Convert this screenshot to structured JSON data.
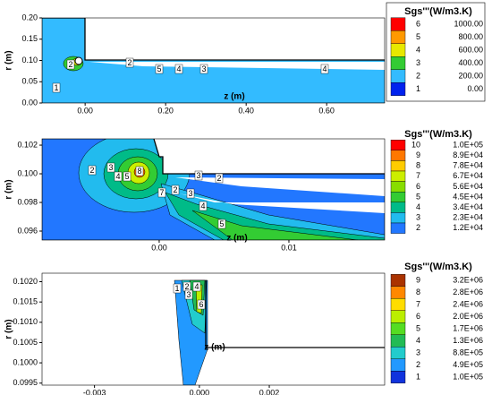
{
  "chart_data": [
    {
      "type": "contour",
      "ylabel": "r (m)",
      "xlabel": "z (m)",
      "xlim": [
        -0.107,
        0.744
      ],
      "ylim": [
        0,
        0.2
      ],
      "xticks": [
        {
          "value": 0,
          "label": "0.00"
        },
        {
          "value": 0.2,
          "label": "0.20"
        },
        {
          "value": 0.4,
          "label": "0.40"
        },
        {
          "value": 0.6,
          "label": "0.60"
        }
      ],
      "yticks": [
        {
          "value": 0,
          "label": "0.00"
        },
        {
          "value": 0.05,
          "label": "0.05"
        },
        {
          "value": 0.1,
          "label": "0.10"
        },
        {
          "value": 0.15,
          "label": "0.15"
        },
        {
          "value": 0.2,
          "label": "0.20"
        }
      ],
      "legend": {
        "title": "Sgs'''(W/m3.K)",
        "levels": [
          {
            "level": 6,
            "value": 1000,
            "label": "1000.00",
            "color": "#ff0000"
          },
          {
            "level": 5,
            "value": 800,
            "label": "800.00",
            "color": "#ff9900"
          },
          {
            "level": 4,
            "value": 600,
            "label": "600.00",
            "color": "#e8e800"
          },
          {
            "level": 3,
            "value": 400,
            "label": "400.00",
            "color": "#33cc33"
          },
          {
            "level": 2,
            "value": 200,
            "label": "200.00",
            "color": "#33bbff"
          },
          {
            "level": 1,
            "value": 0,
            "label": "0.00",
            "color": "#0022ee"
          }
        ]
      }
    },
    {
      "type": "contour",
      "ylabel": "r (m)",
      "xlabel": "z (m)",
      "xlim": [
        -0.00903,
        0.01738
      ],
      "ylim": [
        0.095375,
        0.10244
      ],
      "xticks": [
        {
          "value": 0,
          "label": "0.00"
        },
        0.01
      ],
      "yticks": [
        0.102,
        {
          "value": 0.1,
          "label": "0.100"
        },
        0.098,
        0.096
      ],
      "legend": {
        "title": "Sgs'''(W/m3.K)",
        "levels": [
          {
            "level": 10,
            "value": 100000,
            "label": "1.0E+05",
            "color": "#ff0000"
          },
          {
            "level": 9,
            "value": 89000,
            "label": "8.9E+04",
            "color": "#ff7700"
          },
          {
            "level": 8,
            "value": 78000,
            "label": "7.8E+04",
            "color": "#ffcc00"
          },
          {
            "level": 7,
            "value": 67000,
            "label": "6.7E+04",
            "color": "#ccee00"
          },
          {
            "level": 6,
            "value": 56000,
            "label": "5.6E+04",
            "color": "#88dd00"
          },
          {
            "level": 5,
            "value": 45000,
            "label": "4.5E+04",
            "color": "#33cc33"
          },
          {
            "level": 4,
            "value": 34000,
            "label": "3.4E+04",
            "color": "#00bb88"
          },
          {
            "level": 3,
            "value": 23000,
            "label": "2.3E+04",
            "color": "#22bbee"
          },
          {
            "level": 2,
            "value": 12000,
            "label": "1.2E+04",
            "color": "#2277ff"
          }
        ]
      }
    },
    {
      "type": "contour",
      "ylabel": "r (m)",
      "xlabel": "z (m)",
      "xlim": [
        -0.0045,
        0.0053
      ],
      "ylim": [
        0.09945,
        0.10221
      ],
      "xticks": [
        -0.003,
        {
          "value": 0,
          "label": "0.000"
        },
        0.002
      ],
      "yticks": [
        {
          "value": 0.102,
          "label": "0.1020"
        },
        0.1015,
        {
          "value": 0.101,
          "label": "0.1010"
        },
        0.1005,
        {
          "value": 0.1,
          "label": "0.1000"
        },
        0.0995
      ],
      "legend": {
        "title": "Sgs'''(W/m3.K)",
        "levels": [
          {
            "level": 9,
            "value": 3200000,
            "label": "3.2E+06",
            "color": "#aa3300"
          },
          {
            "level": 8,
            "value": 2800000,
            "label": "2.8E+06",
            "color": "#ff8800"
          },
          {
            "level": 7,
            "value": 2400000,
            "label": "2.4E+06",
            "color": "#ffdd00"
          },
          {
            "level": 6,
            "value": 2000000,
            "label": "2.0E+06",
            "color": "#bbee00"
          },
          {
            "level": 5,
            "value": 1700000,
            "label": "1.7E+06",
            "color": "#55dd22"
          },
          {
            "level": 4,
            "value": 1300000,
            "label": "1.3E+06",
            "color": "#22bb55"
          },
          {
            "level": 3,
            "value": 880000,
            "label": "8.8E+05",
            "color": "#22cccc"
          },
          {
            "level": 2,
            "value": 490000,
            "label": "4.9E+05",
            "color": "#2299ff"
          },
          {
            "level": 1,
            "value": 100000,
            "label": "1.0E+05",
            "color": "#1133dd"
          }
        ]
      }
    }
  ]
}
